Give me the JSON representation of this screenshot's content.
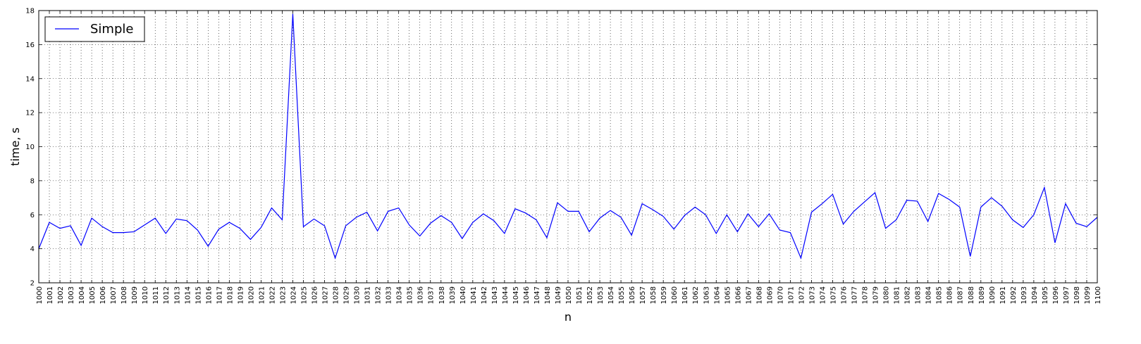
{
  "chart_data": {
    "type": "line",
    "title": "",
    "xlabel": "n",
    "ylabel": "time, s",
    "xlim": [
      1000,
      1100
    ],
    "ylim": [
      2,
      18
    ],
    "yticks": [
      2,
      4,
      6,
      8,
      10,
      12,
      14,
      16,
      18
    ],
    "grid": true,
    "legend": "top-left",
    "x": [
      1000,
      1001,
      1002,
      1003,
      1004,
      1005,
      1006,
      1007,
      1008,
      1009,
      1010,
      1011,
      1012,
      1013,
      1014,
      1015,
      1016,
      1017,
      1018,
      1019,
      1020,
      1021,
      1022,
      1023,
      1024,
      1025,
      1026,
      1027,
      1028,
      1029,
      1030,
      1031,
      1032,
      1033,
      1034,
      1035,
      1036,
      1037,
      1038,
      1039,
      1040,
      1041,
      1042,
      1043,
      1044,
      1045,
      1046,
      1047,
      1048,
      1049,
      1050,
      1051,
      1052,
      1053,
      1054,
      1055,
      1056,
      1057,
      1058,
      1059,
      1060,
      1061,
      1062,
      1063,
      1064,
      1065,
      1066,
      1067,
      1068,
      1069,
      1070,
      1071,
      1072,
      1073,
      1074,
      1075,
      1076,
      1077,
      1078,
      1079,
      1080,
      1081,
      1082,
      1083,
      1084,
      1085,
      1086,
      1087,
      1088,
      1089,
      1090,
      1091,
      1092,
      1093,
      1094,
      1095,
      1096,
      1097,
      1098,
      1099,
      1100
    ],
    "series": [
      {
        "name": "Simple",
        "color": "#0000ff",
        "values": [
          4.0,
          5.55,
          5.2,
          5.35,
          4.2,
          5.8,
          5.3,
          4.95,
          4.95,
          5.0,
          5.4,
          5.8,
          4.9,
          5.75,
          5.65,
          5.1,
          4.15,
          5.15,
          5.55,
          5.2,
          4.55,
          5.25,
          6.4,
          5.7,
          17.8,
          5.3,
          5.75,
          5.35,
          3.45,
          5.35,
          5.85,
          6.15,
          5.05,
          6.2,
          6.4,
          5.4,
          4.75,
          5.5,
          5.95,
          5.55,
          4.6,
          5.55,
          6.05,
          5.65,
          4.9,
          6.35,
          6.1,
          5.7,
          4.65,
          6.7,
          6.2,
          6.2,
          5.0,
          5.8,
          6.25,
          5.85,
          4.8,
          6.65,
          6.3,
          5.9,
          5.15,
          5.95,
          6.45,
          6.0,
          4.9,
          6.0,
          5.0,
          6.05,
          5.3,
          6.05,
          5.1,
          4.95,
          3.45,
          6.15,
          6.65,
          7.2,
          5.45,
          6.2,
          6.75,
          7.3,
          5.2,
          5.7,
          6.85,
          6.8,
          5.6,
          7.25,
          6.9,
          6.45,
          3.55,
          6.45,
          7.0,
          6.5,
          5.7,
          5.25,
          6.0,
          7.6,
          4.35,
          6.65,
          5.5,
          5.3,
          5.85
        ]
      }
    ]
  }
}
